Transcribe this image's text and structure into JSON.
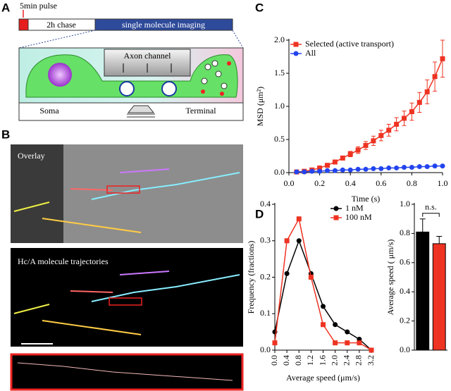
{
  "panel_labels": [
    "A",
    "B",
    "C",
    "D"
  ],
  "diagram": {
    "pulse": "5min pulse",
    "chase": "2h chase",
    "imaging": "single molecule imaging",
    "channel": "Axon channel",
    "soma": "Soma",
    "terminal": "Terminal"
  },
  "images": {
    "overlay": "Overlay",
    "trajectories": "Hc/A molecule trajectories"
  },
  "chart_data": [
    {
      "type": "line",
      "xlabel": "Time (s)",
      "ylabel": "MSD (μm²)",
      "legend": "upper left",
      "xlim": [
        0,
        1.0
      ],
      "xticks": [
        {
          "value": 0,
          "label": "0.0"
        },
        0.2,
        0.4,
        0.6,
        0.8,
        {
          "value": 1,
          "label": "1.0"
        }
      ],
      "ylim": [
        0,
        2.0
      ],
      "yticks": [
        {
          "value": 0,
          "label": "0.0"
        },
        0.5,
        {
          "value": 1,
          "label": "1.0"
        },
        1.5,
        {
          "value": 2,
          "label": "2.0"
        }
      ],
      "x": [
        0.05,
        0.1,
        0.15,
        0.2,
        0.25,
        0.3,
        0.35,
        0.4,
        0.45,
        0.5,
        0.55,
        0.6,
        0.65,
        0.7,
        0.75,
        0.8,
        0.85,
        0.9,
        0.95,
        1.0
      ],
      "series": [
        {
          "name": "Selected (active transport)",
          "color": "#ee3322",
          "marker": "square",
          "values": [
            0.01,
            0.02,
            0.04,
            0.07,
            0.11,
            0.16,
            0.22,
            0.28,
            0.34,
            0.41,
            0.48,
            0.56,
            0.64,
            0.73,
            0.82,
            0.92,
            1.06,
            1.22,
            1.45,
            1.72
          ],
          "errors": [
            0.01,
            0.01,
            0.01,
            0.02,
            0.02,
            0.03,
            0.03,
            0.04,
            0.05,
            0.06,
            0.07,
            0.08,
            0.09,
            0.1,
            0.11,
            0.13,
            0.15,
            0.18,
            0.22,
            0.28
          ]
        },
        {
          "name": "All",
          "color": "#2244ee",
          "marker": "circle",
          "values": [
            0.01,
            0.01,
            0.02,
            0.02,
            0.03,
            0.03,
            0.04,
            0.04,
            0.05,
            0.05,
            0.06,
            0.06,
            0.07,
            0.07,
            0.08,
            0.08,
            0.09,
            0.09,
            0.1,
            0.1
          ]
        }
      ]
    },
    {
      "type": "line",
      "xlabel": "Average speed (μm/s)",
      "ylabel": "Frequency (fractions)",
      "legend": "upper right",
      "xtick_rotation": -90,
      "xlim": [
        0,
        3.2
      ],
      "xticks": [
        {
          "value": 0,
          "label": "0.0"
        },
        0.4,
        0.8,
        1.2,
        1.6,
        {
          "value": 2,
          "label": "2.0"
        },
        2.4,
        2.8,
        3.2
      ],
      "ylim": [
        0,
        0.4
      ],
      "yticks": [
        {
          "value": 0,
          "label": "0.0"
        },
        0.1,
        0.2,
        0.3,
        0.4
      ],
      "x": [
        0,
        0.4,
        0.8,
        1.2,
        1.6,
        2.0,
        2.4,
        2.8,
        3.2
      ],
      "series": [
        {
          "name": "1 nM",
          "color": "#000000",
          "marker": "circle",
          "values": [
            0.05,
            0.21,
            0.3,
            0.21,
            0.12,
            0.07,
            0.05,
            0.03,
            0.0
          ]
        },
        {
          "name": "100 nM",
          "color": "#ee3322",
          "marker": "square",
          "values": [
            0.02,
            0.3,
            0.36,
            0.2,
            0.07,
            0.02,
            0.02,
            0.02,
            0.0
          ]
        }
      ]
    },
    {
      "type": "bar",
      "ylabel": "Average speed ( μm/s)",
      "annotation": "n.s.",
      "ylim": [
        0,
        1.0
      ],
      "yticks": [
        {
          "value": 0,
          "label": "0.0"
        },
        0.2,
        0.4,
        0.6,
        0.8,
        {
          "value": 1,
          "label": "1.0"
        }
      ],
      "categories": [
        null,
        null
      ],
      "values": [
        0.81,
        0.73
      ],
      "errors": [
        0.09,
        0.05
      ],
      "colors": [
        "#000000",
        "#ee3322"
      ]
    }
  ]
}
